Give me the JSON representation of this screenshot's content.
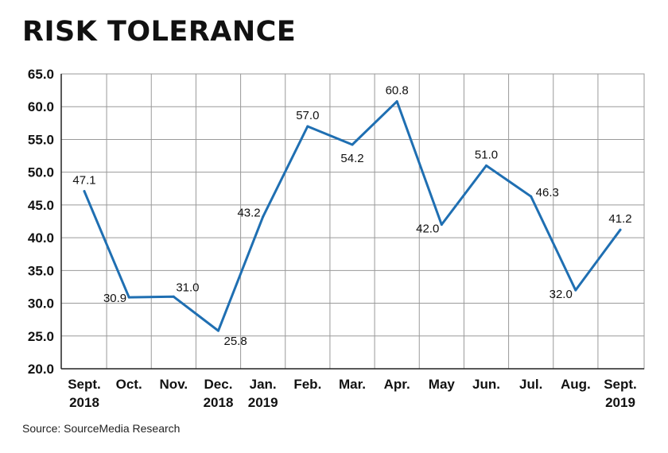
{
  "chart_data": {
    "type": "line",
    "title": "RISK TOLERANCE",
    "source": "Source: SourceMedia Research",
    "categories": [
      [
        "Sept.",
        "2018"
      ],
      [
        "Oct."
      ],
      [
        "Nov."
      ],
      [
        "Dec.",
        "2018"
      ],
      [
        "Jan.",
        "2019"
      ],
      [
        "Feb."
      ],
      [
        "Mar."
      ],
      [
        "Apr."
      ],
      [
        "May"
      ],
      [
        "Jun."
      ],
      [
        "Jul."
      ],
      [
        "Aug."
      ],
      [
        "Sept.",
        "2019"
      ]
    ],
    "values": [
      47.1,
      30.9,
      31.0,
      25.8,
      43.2,
      57.0,
      54.2,
      60.8,
      42.0,
      51.0,
      46.3,
      32.0,
      41.2
    ],
    "ylim": [
      20.0,
      65.0
    ],
    "yticks": [
      "20.0",
      "25.0",
      "30.0",
      "35.0",
      "40.0",
      "45.0",
      "50.0",
      "55.0",
      "60.0",
      "65.0"
    ],
    "grid": true,
    "line_color": "#1f6fb2",
    "grid_color": "#9a9a9a",
    "axis_color": "#222222"
  }
}
